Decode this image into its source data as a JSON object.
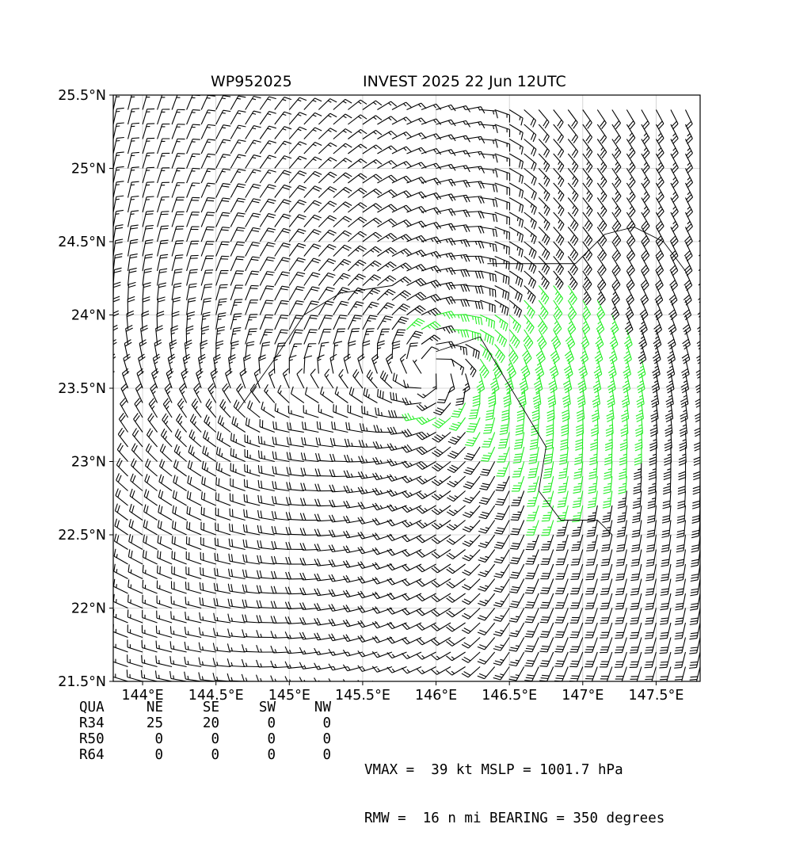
{
  "title": {
    "left": "WP952025",
    "right": "INVEST 2025 22 Jun 12UTC"
  },
  "chart_data": {
    "type": "wind-barb map",
    "xlim": [
      143.8,
      147.8
    ],
    "ylim": [
      21.5,
      25.5
    ],
    "x_ticks": [
      {
        "value": 144.0,
        "label": "144°E"
      },
      {
        "value": 144.5,
        "label": "144.5°E"
      },
      {
        "value": 145.0,
        "label": "145°E"
      },
      {
        "value": 145.5,
        "label": "145.5°E"
      },
      {
        "value": 146.0,
        "label": "146°E"
      },
      {
        "value": 146.5,
        "label": "146.5°E"
      },
      {
        "value": 147.0,
        "label": "147°E"
      },
      {
        "value": 147.5,
        "label": "147.5°E"
      }
    ],
    "y_ticks": [
      {
        "value": 21.5,
        "label": "21.5°N"
      },
      {
        "value": 22.0,
        "label": "22°N"
      },
      {
        "value": 22.5,
        "label": "22.5°N"
      },
      {
        "value": 23.0,
        "label": "23°N"
      },
      {
        "value": 23.5,
        "label": "23.5°N"
      },
      {
        "value": 24.0,
        "label": "24°N"
      },
      {
        "value": 24.5,
        "label": "24.5°N"
      },
      {
        "value": 25.0,
        "label": "25°N"
      },
      {
        "value": 25.5,
        "label": "25.5°N"
      }
    ],
    "grid": true,
    "barb_spacing_deg": 0.1,
    "barb_colors": {
      "below_34kt": "#000000",
      "34_to_49kt": "#22ee22",
      "50_to_63kt": "#f0b400"
    },
    "circulation_center": {
      "lon": 146.02,
      "lat": 23.62
    },
    "secondary_center": {
      "lon": 144.78,
      "lat": 23.45
    }
  },
  "quadrant_table": {
    "headers": [
      "QUA",
      "NE",
      "SE",
      "SW",
      "NW"
    ],
    "rows": [
      {
        "label": "R34",
        "values": [
          "25",
          "20",
          "0",
          "0"
        ]
      },
      {
        "label": "R50",
        "values": [
          "0",
          "0",
          "0",
          "0"
        ]
      },
      {
        "label": "R64",
        "values": [
          "0",
          "0",
          "0",
          "0"
        ]
      }
    ]
  },
  "info": {
    "line1": "VMAX =  39 kt MSLP = 1001.7 hPa",
    "line2": "RMW =  16 n mi BEARING = 350 degrees"
  }
}
